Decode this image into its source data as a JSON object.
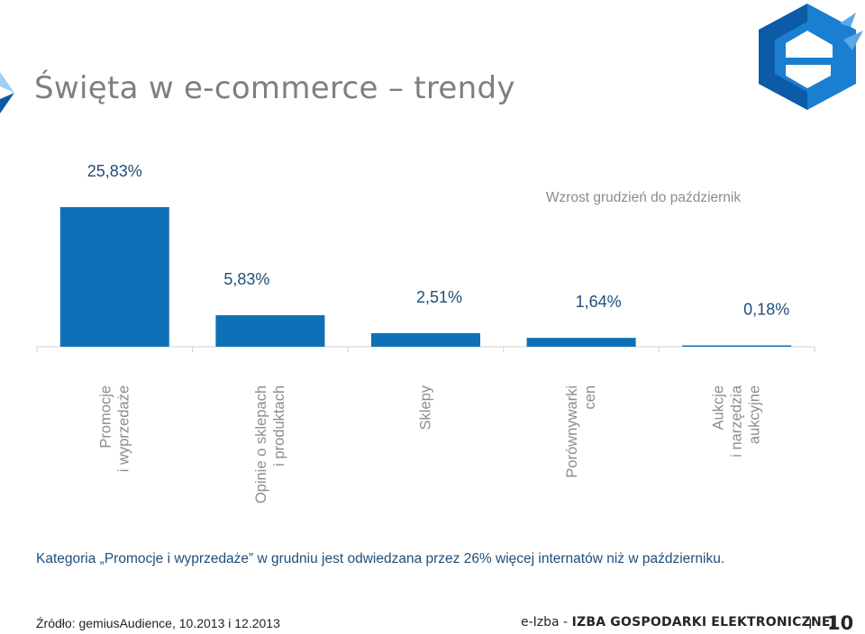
{
  "slide": {
    "title": "Święta w e-commerce – trendy",
    "note": "Kategoria „Promocje i wyprzedaże” w grudniu jest odwiedzana przez  26% więcej internatów niż w październiku.",
    "source": "Źródło: gemiusAudience, 10.2013 i 12.2013",
    "org_brand": "e-Izba",
    "org_separator": " - ",
    "org_name": "IZBA GOSPODARKI ELEKTRONICZNEJ",
    "page_separator": "I",
    "page_number": "10"
  },
  "colors": {
    "bar": "#0f70b7",
    "label": "#1f4e79",
    "category": "#8c8c8c",
    "axis": "#d0d0d0",
    "title": "#7f7f7f",
    "logo_dark": "#0d5ba6",
    "logo_mid": "#1a7fd0",
    "logo_light": "#5aa9e6",
    "arrow_light": "#9fd0f5"
  },
  "icons": {
    "logo": "e-izba-hexagon-logo",
    "title_arrow": "chevron-right-icon"
  },
  "chart_data": {
    "type": "bar",
    "title": "Wzrost grudzień do październik",
    "categories": [
      [
        "Promocje",
        "i wyprzedaże"
      ],
      [
        "Opinie o sklepach",
        "i produktach"
      ],
      [
        "Sklepy"
      ],
      [
        "Porównywarki",
        "cen"
      ],
      [
        "Aukcje",
        "i narzędzia",
        "aukcyjne"
      ]
    ],
    "values": [
      25.83,
      5.83,
      2.51,
      1.64,
      0.18
    ],
    "value_labels": [
      "25,83%",
      "5,83%",
      "2,51%",
      "1,64%",
      "0,18%"
    ],
    "ylim": [
      0,
      30
    ],
    "grid": false,
    "xlabel": "",
    "ylabel": "",
    "legend": "none"
  }
}
